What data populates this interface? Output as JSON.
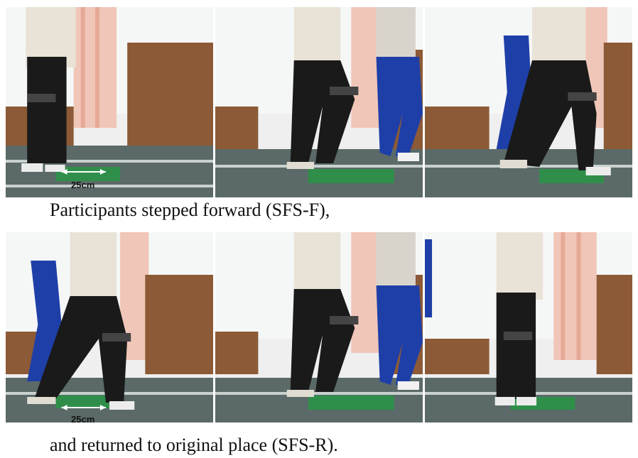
{
  "captions": {
    "step_forward": "Participants stepped forward (SFS-F),",
    "return": "and returned to original place (SFS-R)."
  },
  "scale_bar": {
    "label": "25cm"
  },
  "palette": {
    "curtain": "#f0c6b8",
    "wall_panel": "#8c5a36",
    "pants_black": "#1a1a1a",
    "sweater": "#e9e2d6",
    "tracksuit_blue": "#1f3fa8",
    "floor_mat": "#5b6a68",
    "mat_green": "#2f8f4a",
    "window": "#f4f6f6"
  }
}
